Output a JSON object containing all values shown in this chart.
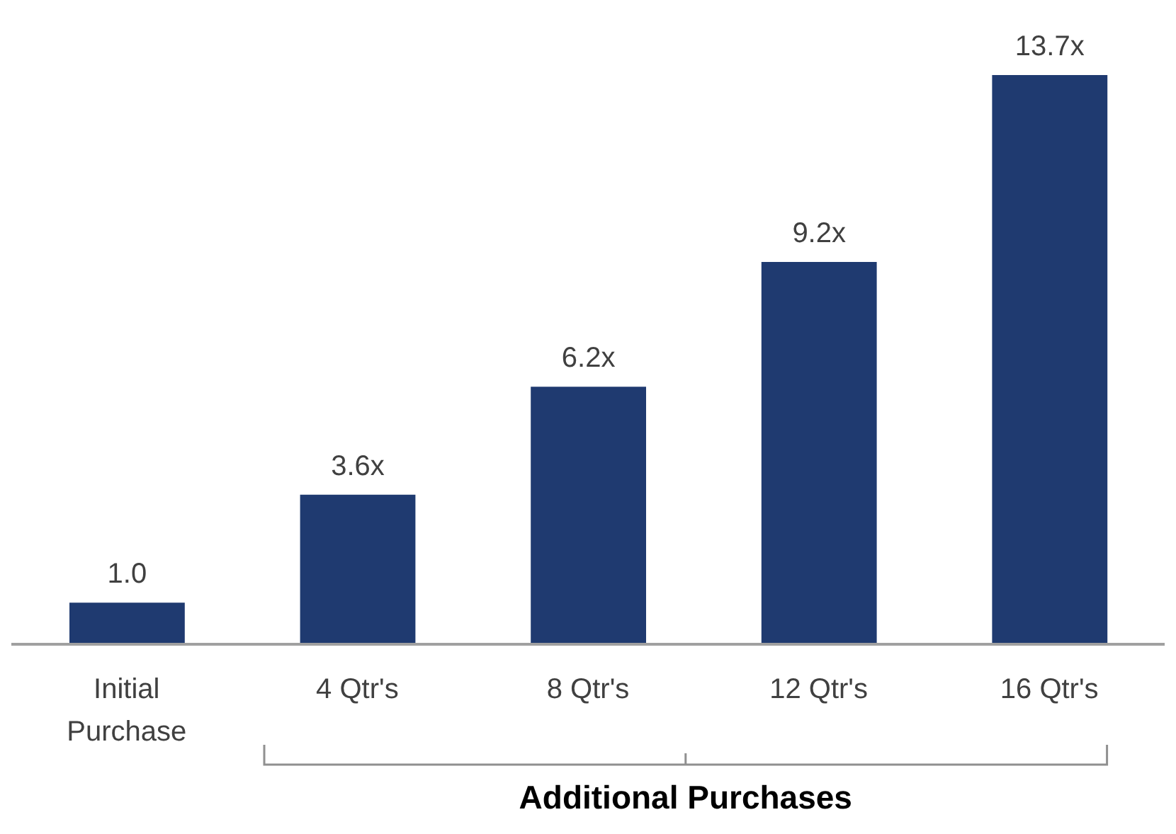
{
  "chart_data": {
    "type": "bar",
    "categories": [
      "Initial Purchase",
      "4 Qtr's",
      "8 Qtr's",
      "12 Qtr's",
      "16 Qtr's"
    ],
    "values": [
      1.0,
      3.6,
      6.2,
      9.2,
      13.7
    ],
    "value_labels": [
      "1.0",
      "3.6x",
      "6.2x",
      "9.2x",
      "13.7x"
    ],
    "color": "#1f3a70",
    "tick_labels": "x",
    "annotations": [
      "Additional Purchases"
    ]
  }
}
